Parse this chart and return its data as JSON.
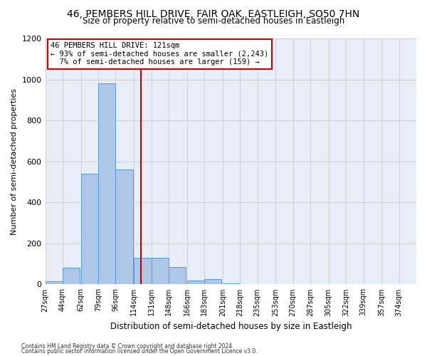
{
  "title": "46, PEMBERS HILL DRIVE, FAIR OAK, EASTLEIGH, SO50 7HN",
  "subtitle": "Size of property relative to semi-detached houses in Eastleigh",
  "xlabel": "Distribution of semi-detached houses by size in Eastleigh",
  "ylabel": "Number of semi-detached properties",
  "bin_labels": [
    "27sqm",
    "44sqm",
    "62sqm",
    "79sqm",
    "96sqm",
    "114sqm",
    "131sqm",
    "148sqm",
    "166sqm",
    "183sqm",
    "201sqm",
    "218sqm",
    "235sqm",
    "253sqm",
    "270sqm",
    "287sqm",
    "305sqm",
    "322sqm",
    "339sqm",
    "357sqm",
    "374sqm"
  ],
  "bin_edges": [
    27,
    44,
    62,
    79,
    96,
    114,
    131,
    148,
    166,
    183,
    201,
    218,
    235,
    253,
    270,
    287,
    305,
    322,
    339,
    357,
    374
  ],
  "bar_heights": [
    15,
    80,
    540,
    980,
    560,
    130,
    130,
    85,
    20,
    25,
    5,
    0,
    0,
    0,
    0,
    0,
    0,
    0,
    0,
    0
  ],
  "bar_color": "#aec6e8",
  "bar_edge_color": "#5b9bd5",
  "property_size": 121,
  "pct_smaller": 93,
  "n_smaller": 2243,
  "pct_larger": 7,
  "n_larger": 159,
  "annotation_box_color": "#ffffff",
  "annotation_box_edge": "#cc0000",
  "vline_color": "#cc0000",
  "ylim": [
    0,
    1200
  ],
  "yticks": [
    0,
    200,
    400,
    600,
    800,
    1000,
    1200
  ],
  "grid_color": "#cccccc",
  "bg_color": "#e8eef7",
  "footnote1": "Contains HM Land Registry data © Crown copyright and database right 2024.",
  "footnote2": "Contains public sector information licensed under the Open Government Licence v3.0."
}
